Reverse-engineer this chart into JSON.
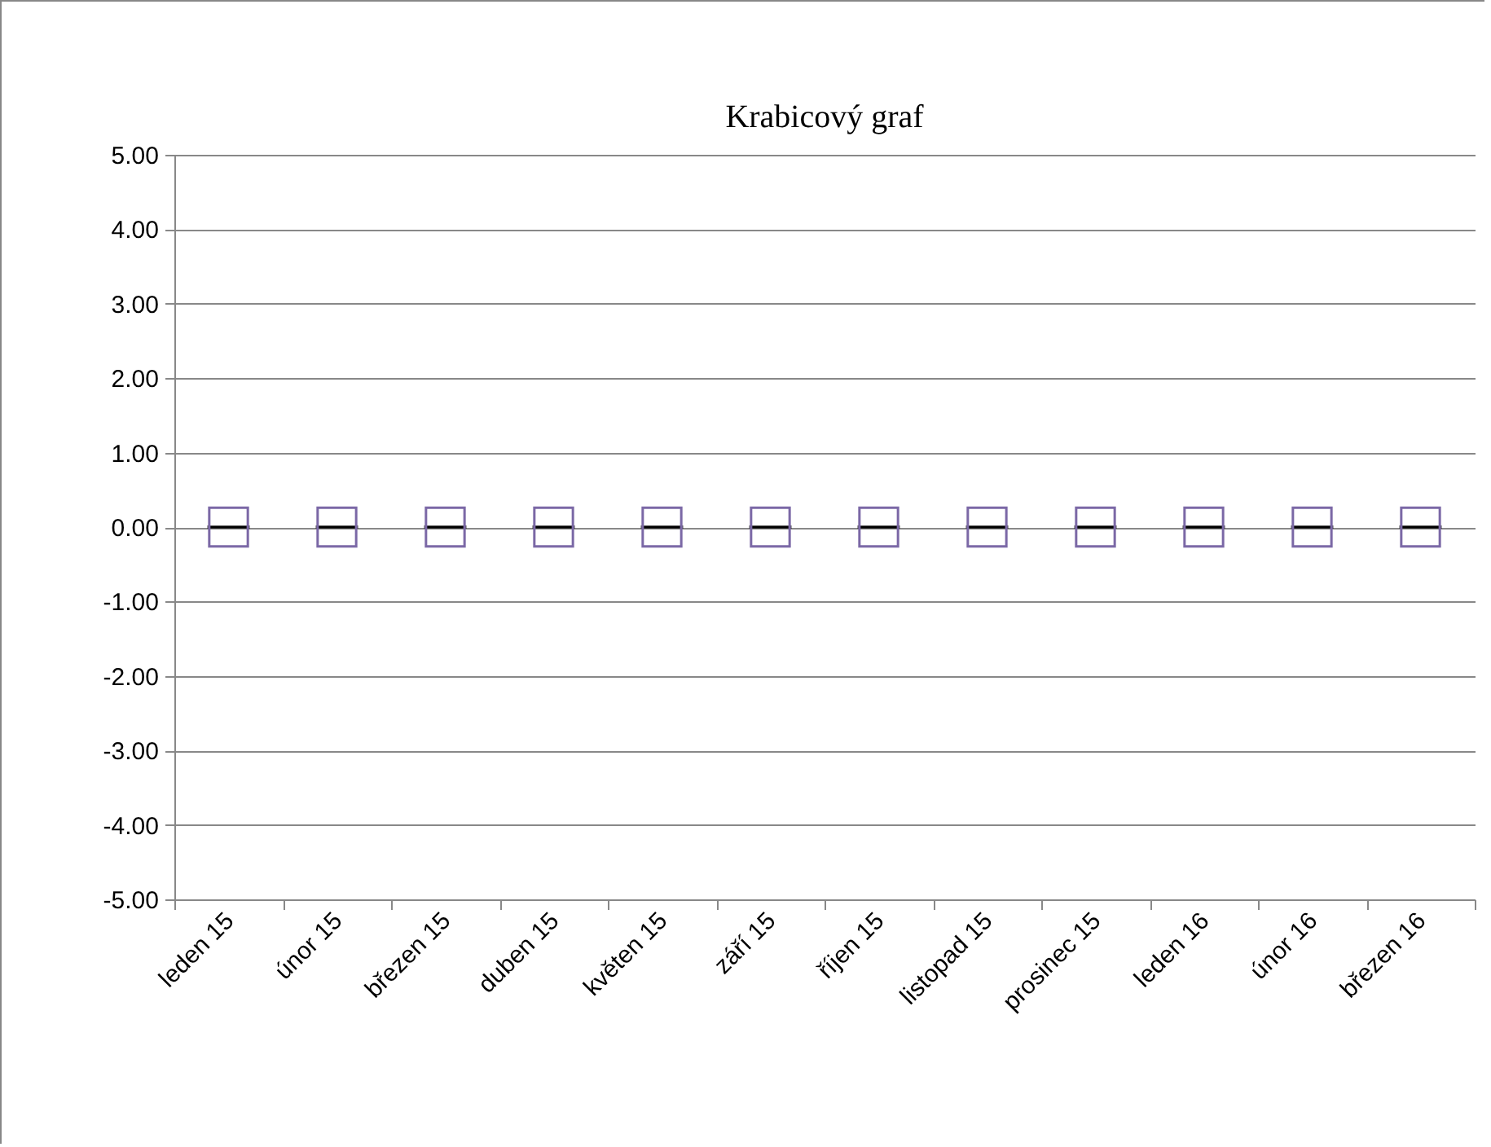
{
  "chart_data": {
    "type": "box",
    "title": "Krabicový graf",
    "categories": [
      "leden 15",
      "únor 15",
      "březen 15",
      "duben 15",
      "květen 15",
      "září 15",
      "říjen 15",
      "listopad 15",
      "prosinec 15",
      "leden 16",
      "únor 16",
      "březen 16"
    ],
    "ylim": [
      -5,
      5
    ],
    "yticks": [
      {
        "value": -5,
        "label": "-5.00"
      },
      {
        "value": -4,
        "label": "-4.00"
      },
      {
        "value": -3,
        "label": "-3.00"
      },
      {
        "value": -2,
        "label": "-2.00"
      },
      {
        "value": -1,
        "label": "-1.00"
      },
      {
        "value": 0,
        "label": "0.00"
      },
      {
        "value": 1,
        "label": "1.00"
      },
      {
        "value": 2,
        "label": "2.00"
      },
      {
        "value": 3,
        "label": "3.00"
      },
      {
        "value": 4,
        "label": "4.00"
      },
      {
        "value": 5,
        "label": "5.00"
      }
    ],
    "grid": "y",
    "series": [
      {
        "color": "#000000",
        "boxes": [
          {
            "low": 0,
            "q1": 0,
            "median": 0,
            "q3": 0,
            "high": 0
          },
          {
            "low": 0,
            "q1": 0,
            "median": 0,
            "q3": 0,
            "high": 0
          },
          {
            "low": 0,
            "q1": 0,
            "median": 0,
            "q3": 0,
            "high": 0
          },
          {
            "low": 0,
            "q1": 0,
            "median": 0,
            "q3": 0,
            "high": 0
          },
          {
            "low": 0,
            "q1": 0,
            "median": 0,
            "q3": 0,
            "high": 0
          },
          {
            "low": 0,
            "q1": 0,
            "median": 0,
            "q3": 0,
            "high": 0
          },
          {
            "low": 0,
            "q1": 0,
            "median": 0,
            "q3": 0,
            "high": 0
          },
          {
            "low": 0,
            "q1": 0,
            "median": 0,
            "q3": 0,
            "high": 0
          },
          {
            "low": 0,
            "q1": 0,
            "median": 0,
            "q3": 0,
            "high": 0
          },
          {
            "low": 0,
            "q1": 0,
            "median": 0,
            "q3": 0,
            "high": 0
          },
          {
            "low": 0,
            "q1": 0,
            "median": 0,
            "q3": 0,
            "high": 0
          },
          {
            "low": 0,
            "q1": 0,
            "median": 0,
            "q3": 0,
            "high": 0
          }
        ]
      },
      {
        "type": "scatter",
        "marker": "square",
        "color": "#7b68a6",
        "values": [
          0,
          0,
          0,
          0,
          0,
          0,
          0,
          0,
          0,
          0,
          0,
          0
        ]
      }
    ]
  }
}
